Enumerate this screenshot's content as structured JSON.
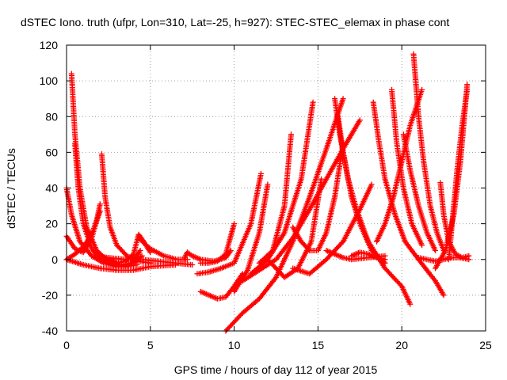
{
  "chart_data": {
    "type": "scatter",
    "title": "dSTEC Iono. truth (ufpr, Lon=310, Lat=-25, h=927): STEC-STEC_elemax in phase cont",
    "xlabel": "GPS time / hours of day 112 of year 2015",
    "ylabel": "dSTEC  / TECUs",
    "xlim": [
      0,
      25
    ],
    "ylim": [
      -40,
      120
    ],
    "x_ticks": [
      0,
      5,
      10,
      15,
      20,
      25
    ],
    "y_ticks": [
      -40,
      -20,
      0,
      20,
      40,
      60,
      80,
      100,
      120
    ],
    "x_tick_labels": [
      "0",
      "5",
      "10",
      "15",
      "20",
      "25"
    ],
    "y_tick_labels": [
      "-40",
      "-20",
      "0",
      "20",
      "40",
      "60",
      "80",
      "100",
      "120"
    ],
    "grid": true,
    "legend": "none",
    "marker": "plus",
    "marker_color": "#ff0000",
    "series": [
      {
        "x": [
          0.0,
          0.3,
          0.8,
          1.5,
          2.2,
          3.0,
          3.8,
          4.4
        ],
        "y": [
          40,
          25,
          10,
          2,
          -2,
          -4,
          -3,
          5
        ]
      },
      {
        "x": [
          0.3,
          0.5,
          0.8,
          1.2,
          1.8,
          2.5,
          3.2,
          4.0,
          4.5
        ],
        "y": [
          104,
          70,
          40,
          18,
          5,
          -1,
          -3,
          -2,
          2
        ]
      },
      {
        "x": [
          0.5,
          0.7,
          1.0,
          1.5,
          2.0,
          2.8,
          3.5,
          4.2
        ],
        "y": [
          65,
          40,
          20,
          6,
          0,
          -3,
          -4,
          -3
        ]
      },
      {
        "x": [
          0.0,
          0.5,
          1.0,
          1.5,
          1.8,
          2.0
        ],
        "y": [
          13,
          6,
          4,
          12,
          22,
          31
        ]
      },
      {
        "x": [
          0.0,
          0.5,
          1.0,
          1.5,
          2.0
        ],
        "y": [
          0,
          3,
          7,
          14,
          27
        ]
      },
      {
        "x": [
          0.0,
          1.0,
          2.0,
          3.0,
          4.0,
          5.0,
          6.5
        ],
        "y": [
          0,
          -3,
          -5,
          -6,
          -6,
          -4,
          -3
        ]
      },
      {
        "x": [
          2.1,
          2.3,
          2.6,
          3.0,
          3.6,
          4.3,
          5.0
        ],
        "y": [
          59,
          35,
          18,
          8,
          2,
          -1,
          -2
        ]
      },
      {
        "x": [
          2.0,
          2.5,
          3.0,
          3.5,
          4.0,
          4.3,
          4.6,
          5.0
        ],
        "y": [
          2,
          0,
          -2,
          -1,
          3,
          14,
          10,
          4
        ]
      },
      {
        "x": [
          1.5,
          2.5,
          3.5,
          4.5,
          5.5,
          6.5,
          7.5
        ],
        "y": [
          2,
          1,
          0,
          0,
          -1,
          -2,
          -3
        ]
      },
      {
        "x": [
          4.3,
          5.0,
          5.8,
          6.6,
          7.2
        ],
        "y": [
          12,
          6,
          2,
          0,
          0
        ]
      },
      {
        "x": [
          7.0,
          7.2,
          7.5,
          8.0,
          8.8,
          9.5,
          9.8
        ],
        "y": [
          0,
          4,
          2,
          0,
          -1,
          1,
          5
        ]
      },
      {
        "x": [
          8.0,
          8.5,
          9.0,
          9.5,
          10.0
        ],
        "y": [
          -2,
          -2,
          -1,
          3,
          20
        ]
      },
      {
        "x": [
          8.0,
          8.5,
          9.0,
          9.5,
          10.0,
          10.5
        ],
        "y": [
          -18,
          -20,
          -22,
          -21,
          -15,
          -8
        ]
      },
      {
        "x": [
          7.8,
          8.5,
          9.2,
          10.0,
          11.0,
          11.6
        ],
        "y": [
          -8,
          -7,
          -5,
          -2,
          20,
          48
        ]
      },
      {
        "x": [
          9.5,
          10.5,
          11.5,
          12.5,
          13.5,
          14.5,
          15.5,
          16.5
        ],
        "y": [
          -40,
          -30,
          -22,
          -10,
          10,
          35,
          62,
          90
        ]
      },
      {
        "x": [
          10.0,
          10.8,
          11.5,
          12.0
        ],
        "y": [
          -18,
          -6,
          15,
          42
        ]
      },
      {
        "x": [
          10.5,
          11.5,
          12.5,
          13.5,
          14.5,
          15.5,
          16.5,
          17.5
        ],
        "y": [
          -12,
          -6,
          0,
          12,
          28,
          45,
          62,
          78
        ]
      },
      {
        "x": [
          11.0,
          12.0,
          13.0,
          14.0,
          14.7
        ],
        "y": [
          -8,
          0,
          15,
          45,
          88
        ]
      },
      {
        "x": [
          11.5,
          12.3,
          13.0,
          13.4
        ],
        "y": [
          -2,
          5,
          30,
          70
        ]
      },
      {
        "x": [
          12.0,
          12.5,
          13.0,
          13.8,
          14.6,
          15.2
        ],
        "y": [
          0,
          -5,
          -10,
          -5,
          10,
          45
        ]
      },
      {
        "x": [
          13.5,
          14.5,
          15.5,
          16.5,
          17.5,
          18.2
        ],
        "y": [
          -5,
          -8,
          0,
          10,
          28,
          42
        ]
      },
      {
        "x": [
          13.5,
          14.0,
          14.5,
          15.0,
          15.5,
          16.0,
          16.5
        ],
        "y": [
          18,
          10,
          5,
          5,
          15,
          35,
          65
        ]
      },
      {
        "x": [
          16.0,
          16.3,
          16.8,
          17.3,
          18.0,
          19.0,
          20.0,
          20.5
        ],
        "y": [
          90,
          70,
          45,
          28,
          10,
          -5,
          -15,
          -25
        ]
      },
      {
        "x": [
          16.2,
          16.5,
          17.0,
          17.5,
          18.2,
          19.0
        ],
        "y": [
          80,
          60,
          35,
          20,
          5,
          -2
        ]
      },
      {
        "x": [
          15.5,
          16.0,
          16.5,
          17.0,
          18.0,
          19.0
        ],
        "y": [
          5,
          3,
          1,
          0,
          1,
          2
        ]
      },
      {
        "x": [
          17.0,
          17.5,
          18.0,
          18.5,
          19.0
        ],
        "y": [
          2,
          4,
          3,
          1,
          0
        ]
      },
      {
        "x": [
          18.3,
          18.6,
          19.0,
          19.6,
          20.2,
          21.0,
          22.0,
          22.5
        ],
        "y": [
          88,
          68,
          45,
          25,
          10,
          0,
          -12,
          -20
        ]
      },
      {
        "x": [
          19.4,
          19.7,
          20.1,
          20.6,
          21.2
        ],
        "y": [
          95,
          65,
          40,
          20,
          8
        ]
      },
      {
        "x": [
          20.1,
          20.5,
          21.0,
          21.5,
          22.0
        ],
        "y": [
          70,
          50,
          30,
          15,
          5
        ]
      },
      {
        "x": [
          20.7,
          21.0,
          21.3,
          21.7,
          22.1,
          22.5
        ],
        "y": [
          115,
          80,
          55,
          30,
          15,
          5
        ]
      },
      {
        "x": [
          18.5,
          19.0,
          19.5,
          20.0,
          20.5,
          21.2
        ],
        "y": [
          10,
          20,
          35,
          55,
          75,
          95
        ]
      },
      {
        "x": [
          22.3,
          22.5,
          22.8,
          23.2,
          23.6,
          24.0
        ],
        "y": [
          43,
          25,
          10,
          3,
          1,
          2
        ]
      },
      {
        "x": [
          22.8,
          23.0,
          23.3,
          23.6,
          23.9
        ],
        "y": [
          0,
          20,
          50,
          75,
          95
        ]
      },
      {
        "x": [
          22.0,
          22.6,
          23.1,
          23.5,
          23.9
        ],
        "y": [
          -5,
          5,
          25,
          55,
          98
        ]
      },
      {
        "x": [
          21.0,
          21.5,
          22.0,
          22.5,
          23.0,
          23.5,
          24.0
        ],
        "y": [
          1,
          0,
          -1,
          0,
          1,
          1,
          0
        ]
      }
    ]
  }
}
